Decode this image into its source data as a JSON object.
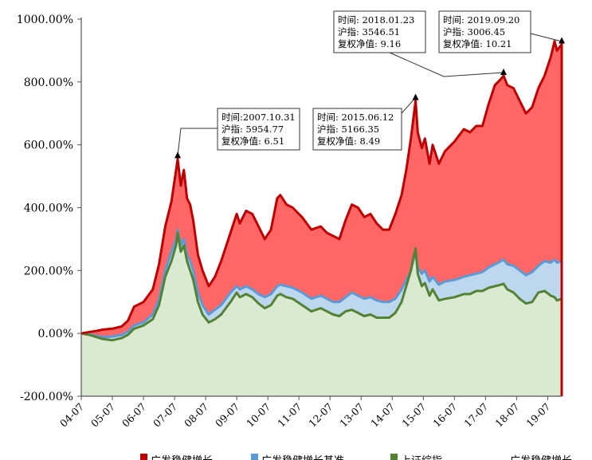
{
  "chart_data": {
    "type": "area",
    "title": "",
    "xlabel": "",
    "ylabel": "",
    "ylim": [
      -200,
      1000
    ],
    "yticks": [
      "-200.00%",
      "0.00%",
      "200.00%",
      "400.00%",
      "600.00%",
      "800.00%",
      "1000.00%"
    ],
    "ytick_values": [
      -200,
      0,
      200,
      400,
      600,
      800,
      1000
    ],
    "xticks": [
      "04-07",
      "05-07",
      "06-07",
      "07-07",
      "08-07",
      "09-07",
      "10-07",
      "11-07",
      "12-07",
      "13-07",
      "14-07",
      "15-07",
      "16-07",
      "17-07",
      "18-07",
      "19-07"
    ],
    "x_range": [
      2004.5,
      2019.95
    ],
    "grid": false,
    "legend_position": "bottom",
    "series": [
      {
        "name": "广发稳健增长",
        "color": "#c00000",
        "fill": "#ff6666",
        "points": [
          [
            2004.5,
            0
          ],
          [
            2004.8,
            5
          ],
          [
            2005.0,
            8
          ],
          [
            2005.2,
            12
          ],
          [
            2005.5,
            15
          ],
          [
            2005.8,
            22
          ],
          [
            2006.0,
            40
          ],
          [
            2006.2,
            85
          ],
          [
            2006.5,
            100
          ],
          [
            2006.8,
            140
          ],
          [
            2007.0,
            220
          ],
          [
            2007.2,
            340
          ],
          [
            2007.4,
            420
          ],
          [
            2007.55,
            520
          ],
          [
            2007.6,
            555
          ],
          [
            2007.7,
            470
          ],
          [
            2007.8,
            520
          ],
          [
            2007.9,
            430
          ],
          [
            2008.0,
            410
          ],
          [
            2008.1,
            360
          ],
          [
            2008.25,
            250
          ],
          [
            2008.4,
            200
          ],
          [
            2008.6,
            150
          ],
          [
            2008.8,
            180
          ],
          [
            2009.0,
            230
          ],
          [
            2009.3,
            320
          ],
          [
            2009.5,
            380
          ],
          [
            2009.6,
            350
          ],
          [
            2009.8,
            390
          ],
          [
            2010.0,
            380
          ],
          [
            2010.2,
            340
          ],
          [
            2010.4,
            300
          ],
          [
            2010.6,
            330
          ],
          [
            2010.8,
            430
          ],
          [
            2010.9,
            440
          ],
          [
            2011.1,
            410
          ],
          [
            2011.3,
            400
          ],
          [
            2011.6,
            370
          ],
          [
            2011.9,
            330
          ],
          [
            2012.2,
            340
          ],
          [
            2012.4,
            320
          ],
          [
            2012.6,
            310
          ],
          [
            2012.8,
            300
          ],
          [
            2013.0,
            360
          ],
          [
            2013.2,
            410
          ],
          [
            2013.4,
            400
          ],
          [
            2013.6,
            370
          ],
          [
            2013.8,
            380
          ],
          [
            2014.0,
            350
          ],
          [
            2014.2,
            330
          ],
          [
            2014.4,
            330
          ],
          [
            2014.6,
            380
          ],
          [
            2014.8,
            440
          ],
          [
            2014.95,
            520
          ],
          [
            2015.1,
            620
          ],
          [
            2015.2,
            700
          ],
          [
            2015.25,
            740
          ],
          [
            2015.32,
            640
          ],
          [
            2015.45,
            590
          ],
          [
            2015.55,
            620
          ],
          [
            2015.7,
            540
          ],
          [
            2015.8,
            600
          ],
          [
            2016.0,
            540
          ],
          [
            2016.2,
            580
          ],
          [
            2016.5,
            610
          ],
          [
            2016.8,
            650
          ],
          [
            2017.0,
            640
          ],
          [
            2017.2,
            660
          ],
          [
            2017.4,
            660
          ],
          [
            2017.6,
            730
          ],
          [
            2017.8,
            790
          ],
          [
            2018.0,
            810
          ],
          [
            2018.08,
            820
          ],
          [
            2018.2,
            790
          ],
          [
            2018.4,
            780
          ],
          [
            2018.6,
            740
          ],
          [
            2018.8,
            700
          ],
          [
            2019.0,
            720
          ],
          [
            2019.2,
            780
          ],
          [
            2019.4,
            820
          ],
          [
            2019.6,
            880
          ],
          [
            2019.72,
            930
          ],
          [
            2019.8,
            900
          ],
          [
            2019.95,
            920
          ]
        ]
      },
      {
        "name": "广发稳健增长基准",
        "color": "#5b9bd5",
        "fill": "#bdd7ee",
        "points": [
          [
            2004.5,
            0
          ],
          [
            2004.8,
            -4
          ],
          [
            2005.0,
            -8
          ],
          [
            2005.2,
            -12
          ],
          [
            2005.5,
            -10
          ],
          [
            2005.8,
            -5
          ],
          [
            2006.0,
            5
          ],
          [
            2006.2,
            25
          ],
          [
            2006.5,
            35
          ],
          [
            2006.8,
            60
          ],
          [
            2007.0,
            110
          ],
          [
            2007.2,
            200
          ],
          [
            2007.4,
            260
          ],
          [
            2007.55,
            300
          ],
          [
            2007.6,
            330
          ],
          [
            2007.7,
            280
          ],
          [
            2007.8,
            300
          ],
          [
            2007.9,
            250
          ],
          [
            2008.0,
            230
          ],
          [
            2008.1,
            200
          ],
          [
            2008.25,
            130
          ],
          [
            2008.4,
            90
          ],
          [
            2008.6,
            60
          ],
          [
            2008.8,
            75
          ],
          [
            2009.0,
            90
          ],
          [
            2009.3,
            130
          ],
          [
            2009.5,
            150
          ],
          [
            2009.6,
            140
          ],
          [
            2009.8,
            150
          ],
          [
            2010.0,
            140
          ],
          [
            2010.2,
            125
          ],
          [
            2010.4,
            115
          ],
          [
            2010.6,
            125
          ],
          [
            2010.8,
            150
          ],
          [
            2010.9,
            155
          ],
          [
            2011.1,
            150
          ],
          [
            2011.3,
            145
          ],
          [
            2011.6,
            130
          ],
          [
            2011.9,
            110
          ],
          [
            2012.2,
            120
          ],
          [
            2012.4,
            110
          ],
          [
            2012.6,
            100
          ],
          [
            2012.8,
            100
          ],
          [
            2013.0,
            115
          ],
          [
            2013.2,
            130
          ],
          [
            2013.4,
            120
          ],
          [
            2013.6,
            110
          ],
          [
            2013.8,
            115
          ],
          [
            2014.0,
            105
          ],
          [
            2014.2,
            100
          ],
          [
            2014.4,
            100
          ],
          [
            2014.6,
            110
          ],
          [
            2014.8,
            140
          ],
          [
            2014.95,
            170
          ],
          [
            2015.1,
            200
          ],
          [
            2015.2,
            240
          ],
          [
            2015.25,
            260
          ],
          [
            2015.32,
            210
          ],
          [
            2015.45,
            190
          ],
          [
            2015.55,
            200
          ],
          [
            2015.7,
            165
          ],
          [
            2015.8,
            180
          ],
          [
            2016.0,
            155
          ],
          [
            2016.2,
            165
          ],
          [
            2016.5,
            170
          ],
          [
            2016.8,
            180
          ],
          [
            2017.0,
            185
          ],
          [
            2017.2,
            190
          ],
          [
            2017.4,
            195
          ],
          [
            2017.6,
            210
          ],
          [
            2017.8,
            220
          ],
          [
            2018.0,
            230
          ],
          [
            2018.08,
            235
          ],
          [
            2018.2,
            220
          ],
          [
            2018.4,
            215
          ],
          [
            2018.6,
            200
          ],
          [
            2018.8,
            185
          ],
          [
            2019.0,
            195
          ],
          [
            2019.2,
            215
          ],
          [
            2019.4,
            230
          ],
          [
            2019.6,
            225
          ],
          [
            2019.72,
            235
          ],
          [
            2019.8,
            225
          ],
          [
            2019.95,
            230
          ]
        ]
      },
      {
        "name": "上证综指",
        "color": "#548235",
        "fill": "#d9ead0",
        "points": [
          [
            2004.5,
            0
          ],
          [
            2004.8,
            -6
          ],
          [
            2005.0,
            -12
          ],
          [
            2005.2,
            -18
          ],
          [
            2005.5,
            -22
          ],
          [
            2005.8,
            -15
          ],
          [
            2006.0,
            -5
          ],
          [
            2006.2,
            15
          ],
          [
            2006.5,
            25
          ],
          [
            2006.8,
            45
          ],
          [
            2007.0,
            90
          ],
          [
            2007.2,
            180
          ],
          [
            2007.4,
            230
          ],
          [
            2007.55,
            280
          ],
          [
            2007.6,
            320
          ],
          [
            2007.7,
            260
          ],
          [
            2007.8,
            280
          ],
          [
            2007.9,
            230
          ],
          [
            2008.0,
            200
          ],
          [
            2008.1,
            170
          ],
          [
            2008.25,
            100
          ],
          [
            2008.4,
            60
          ],
          [
            2008.6,
            35
          ],
          [
            2008.8,
            45
          ],
          [
            2009.0,
            60
          ],
          [
            2009.3,
            100
          ],
          [
            2009.5,
            130
          ],
          [
            2009.6,
            115
          ],
          [
            2009.8,
            125
          ],
          [
            2010.0,
            115
          ],
          [
            2010.2,
            95
          ],
          [
            2010.4,
            80
          ],
          [
            2010.6,
            90
          ],
          [
            2010.8,
            120
          ],
          [
            2010.9,
            125
          ],
          [
            2011.1,
            115
          ],
          [
            2011.3,
            110
          ],
          [
            2011.6,
            90
          ],
          [
            2011.9,
            70
          ],
          [
            2012.2,
            80
          ],
          [
            2012.4,
            70
          ],
          [
            2012.6,
            60
          ],
          [
            2012.8,
            55
          ],
          [
            2013.0,
            70
          ],
          [
            2013.2,
            75
          ],
          [
            2013.4,
            65
          ],
          [
            2013.6,
            55
          ],
          [
            2013.8,
            60
          ],
          [
            2014.0,
            50
          ],
          [
            2014.2,
            50
          ],
          [
            2014.4,
            50
          ],
          [
            2014.6,
            65
          ],
          [
            2014.8,
            100
          ],
          [
            2014.95,
            150
          ],
          [
            2015.1,
            200
          ],
          [
            2015.2,
            250
          ],
          [
            2015.25,
            270
          ],
          [
            2015.32,
            190
          ],
          [
            2015.45,
            150
          ],
          [
            2015.55,
            160
          ],
          [
            2015.7,
            120
          ],
          [
            2015.8,
            140
          ],
          [
            2016.0,
            105
          ],
          [
            2016.2,
            110
          ],
          [
            2016.5,
            115
          ],
          [
            2016.8,
            125
          ],
          [
            2017.0,
            125
          ],
          [
            2017.2,
            135
          ],
          [
            2017.4,
            135
          ],
          [
            2017.6,
            145
          ],
          [
            2017.8,
            150
          ],
          [
            2018.0,
            155
          ],
          [
            2018.08,
            158
          ],
          [
            2018.2,
            140
          ],
          [
            2018.4,
            130
          ],
          [
            2018.6,
            110
          ],
          [
            2018.8,
            95
          ],
          [
            2019.0,
            100
          ],
          [
            2019.2,
            130
          ],
          [
            2019.4,
            135
          ],
          [
            2019.6,
            120
          ],
          [
            2019.72,
            115
          ],
          [
            2019.8,
            105
          ],
          [
            2019.95,
            110
          ]
        ]
      }
    ],
    "annotations": [
      {
        "x": 2007.6,
        "y": 555,
        "lines": [
          "时间:2007.10.31",
          "沪指: 5954.77",
          "复权净值: 6.51"
        ]
      },
      {
        "x": 2015.25,
        "y": 740,
        "lines": [
          "时间: 2015.06.12",
          "沪指: 5166.35",
          "复权净值: 8.49"
        ]
      },
      {
        "x": 2018.08,
        "y": 820,
        "lines": [
          "时间: 2018.01.23",
          "沪指: 3546.51",
          "复权净值: 9.16"
        ]
      },
      {
        "x": 2019.95,
        "y": 920,
        "lines": [
          "时间: 2019.09.20",
          "沪指: 3006.45",
          "复权净值: 10.21"
        ]
      }
    ],
    "watermark": "广发稳健增长"
  }
}
